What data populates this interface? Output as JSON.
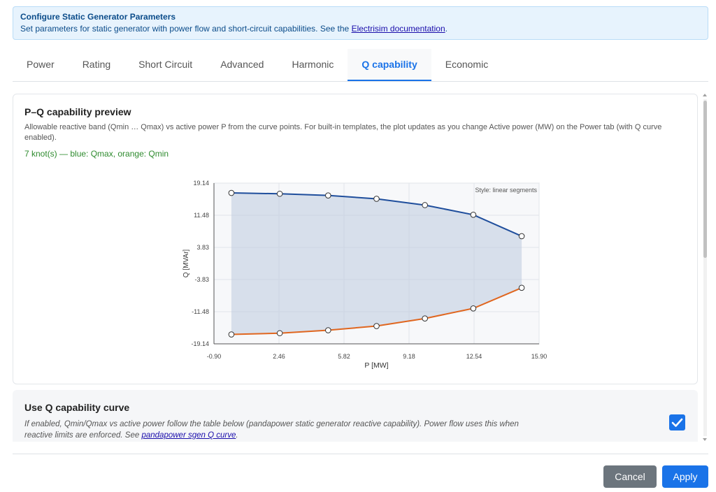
{
  "banner": {
    "title": "Configure Static Generator Parameters",
    "text": "Set parameters for static generator with power flow and short-circuit capabilities. See the ",
    "link": "Electrisim documentation",
    "text_end": "."
  },
  "tabs": [
    "Power",
    "Rating",
    "Short Circuit",
    "Advanced",
    "Harmonic",
    "Q capability",
    "Economic"
  ],
  "active_tab": "Q capability",
  "preview": {
    "title": "P–Q capability preview",
    "description": "Allowable reactive band (Qmin … Qmax) vs active power P from the curve points. For built-in templates, the plot updates as you change Active power (MW) on the Power tab (with Q curve enabled).",
    "knot_info": "7 knot(s) — blue: Qmax, orange: Qmin"
  },
  "chart_data": {
    "type": "line",
    "xlabel": "P [MW]",
    "ylabel": "Q [MVAr]",
    "xlim": [
      -0.9,
      15.9
    ],
    "ylim": [
      -19.14,
      19.14
    ],
    "xticks": [
      "-0.90",
      "2.46",
      "5.82",
      "9.18",
      "12.54",
      "15.90"
    ],
    "yticks": [
      "19.14",
      "11.48",
      "3.83",
      "-3.83",
      "-11.48",
      "-19.14"
    ],
    "annotation": "Style: linear segments",
    "grid": true,
    "x": [
      0.0,
      2.5,
      5.0,
      7.5,
      10.0,
      12.5,
      15.0
    ],
    "series": [
      {
        "values": [
          16.8,
          16.6,
          16.2,
          15.4,
          13.9,
          11.6,
          6.5
        ],
        "color": "#1f4e9c"
      },
      {
        "values": [
          -16.9,
          -16.6,
          -15.9,
          -14.9,
          -13.1,
          -10.7,
          -5.8
        ],
        "color": "#e0661f"
      }
    ],
    "band_color": "#b8c6dc"
  },
  "q_curve": {
    "title": "Use Q capability curve",
    "description": "If enabled, Qmin/Qmax vs active power follow the table below (pandapower static generator reactive capability). Power flow uses this when reactive limits are enforced. See ",
    "link": "pandapower sgen Q curve",
    "description_end": ".",
    "checked": true
  },
  "buttons": {
    "cancel": "Cancel",
    "apply": "Apply"
  }
}
